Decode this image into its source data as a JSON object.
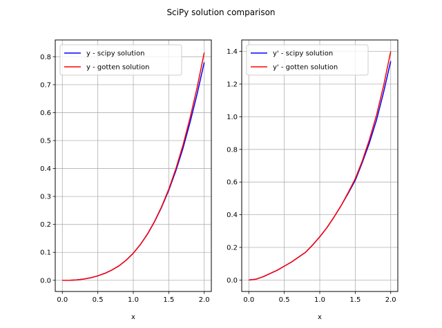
{
  "chart_data": {
    "suptitle": "SciPy solution comparison",
    "charts": [
      {
        "type": "line",
        "xlabel": "x",
        "ylabel": "",
        "xlim": [
          -0.1,
          2.1
        ],
        "ylim": [
          -0.04,
          0.86
        ],
        "xticks": [
          0.0,
          0.5,
          1.0,
          1.5,
          2.0
        ],
        "xtick_labels": [
          "0.0",
          "0.5",
          "1.0",
          "1.5",
          "2.0"
        ],
        "yticks": [
          0.0,
          0.1,
          0.2,
          0.3,
          0.4,
          0.5,
          0.6,
          0.7,
          0.8
        ],
        "ytick_labels": [
          "0.0",
          "0.1",
          "0.2",
          "0.3",
          "0.4",
          "0.5",
          "0.6",
          "0.7",
          "0.8"
        ],
        "grid": true,
        "legend_position": "top-left",
        "series": [
          {
            "name": "y - scipy solution",
            "color": "#0000ff",
            "x": [
              0.0,
              0.1,
              0.2,
              0.3,
              0.4,
              0.5,
              0.6,
              0.7,
              0.8,
              0.9,
              1.0,
              1.1,
              1.2,
              1.3,
              1.4,
              1.5,
              1.6,
              1.7,
              1.8,
              1.9,
              2.0
            ],
            "y": [
              0.0,
              0.0002,
              0.0014,
              0.0045,
              0.009,
              0.016,
              0.025,
              0.037,
              0.052,
              0.072,
              0.097,
              0.128,
              0.165,
              0.21,
              0.262,
              0.322,
              0.392,
              0.472,
              0.565,
              0.667,
              0.78
            ]
          },
          {
            "name": "y - gotten solution",
            "color": "#ff0000",
            "x": [
              0.0,
              0.1,
              0.2,
              0.3,
              0.4,
              0.5,
              0.6,
              0.7,
              0.8,
              0.9,
              1.0,
              1.1,
              1.2,
              1.3,
              1.4,
              1.5,
              1.6,
              1.7,
              1.8,
              1.9,
              2.0
            ],
            "y": [
              0.0,
              0.0002,
              0.0014,
              0.0045,
              0.009,
              0.016,
              0.025,
              0.037,
              0.052,
              0.072,
              0.097,
              0.128,
              0.166,
              0.211,
              0.264,
              0.326,
              0.399,
              0.483,
              0.581,
              0.69,
              0.815
            ]
          }
        ]
      },
      {
        "type": "line",
        "xlabel": "x",
        "ylabel": "",
        "xlim": [
          -0.1,
          2.1
        ],
        "ylim": [
          -0.07,
          1.47
        ],
        "xticks": [
          0.0,
          0.5,
          1.0,
          1.5,
          2.0
        ],
        "xtick_labels": [
          "0.0",
          "0.5",
          "1.0",
          "1.5",
          "2.0"
        ],
        "yticks": [
          0.0,
          0.2,
          0.4,
          0.6,
          0.8,
          1.0,
          1.2,
          1.4
        ],
        "ytick_labels": [
          "0.0",
          "0.2",
          "0.4",
          "0.6",
          "0.8",
          "1.0",
          "1.2",
          "1.4"
        ],
        "grid": true,
        "legend_position": "top-left",
        "series": [
          {
            "name": "y' - scipy solution",
            "color": "#0000ff",
            "x": [
              0.0,
              0.1,
              0.2,
              0.3,
              0.4,
              0.5,
              0.6,
              0.7,
              0.8,
              0.9,
              1.0,
              1.1,
              1.2,
              1.3,
              1.4,
              1.5,
              1.6,
              1.7,
              1.8,
              1.9,
              2.0
            ],
            "y": [
              0.0,
              0.005,
              0.02,
              0.04,
              0.06,
              0.085,
              0.11,
              0.14,
              0.17,
              0.215,
              0.265,
              0.32,
              0.385,
              0.455,
              0.53,
              0.61,
              0.72,
              0.84,
              0.98,
              1.15,
              1.34
            ]
          },
          {
            "name": "y' - gotten solution",
            "color": "#ff0000",
            "x": [
              0.0,
              0.1,
              0.2,
              0.3,
              0.4,
              0.5,
              0.6,
              0.7,
              0.8,
              0.9,
              1.0,
              1.1,
              1.2,
              1.3,
              1.4,
              1.5,
              1.6,
              1.7,
              1.8,
              1.9,
              2.0
            ],
            "y": [
              0.0,
              0.005,
              0.02,
              0.04,
              0.06,
              0.085,
              0.11,
              0.14,
              0.17,
              0.215,
              0.265,
              0.32,
              0.385,
              0.455,
              0.535,
              0.62,
              0.73,
              0.86,
              1.01,
              1.19,
              1.4
            ]
          }
        ]
      }
    ]
  }
}
